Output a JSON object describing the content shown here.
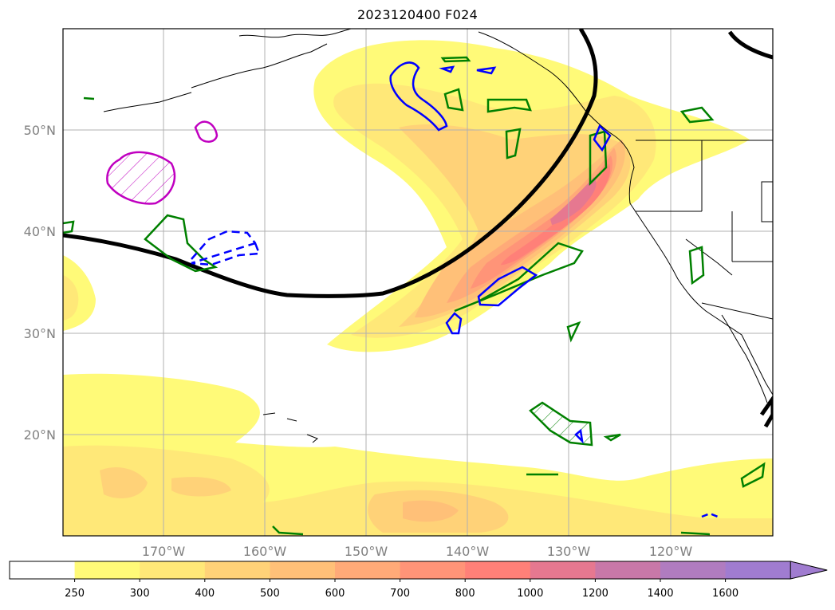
{
  "title": "2023120400 F024",
  "lat_labels": [
    "50°N",
    "40°N",
    "30°N",
    "20°N"
  ],
  "lon_labels": [
    "170°W",
    "160°W",
    "150°W",
    "140°W",
    "130°W",
    "120°W"
  ],
  "colorbar": {
    "ticks": [
      "250",
      "300",
      "400",
      "500",
      "600",
      "700",
      "800",
      "1000",
      "1200",
      "1400",
      "1600"
    ],
    "colors": [
      "#ffffff",
      "#fffa78",
      "#ffe878",
      "#ffd278",
      "#ffc078",
      "#ffaa78",
      "#ff9478",
      "#ff8078",
      "#e67890",
      "#c878a8",
      "#b07cc0",
      "#a07cd0"
    ],
    "extend": "max"
  },
  "colors": {
    "jet_contour": "#000000",
    "positive_contour": "#008000",
    "negative_contour": "#0000ff",
    "magenta_contour": "#c000c0",
    "coastline": "#000000",
    "gridline": "#b0b0b0"
  }
}
